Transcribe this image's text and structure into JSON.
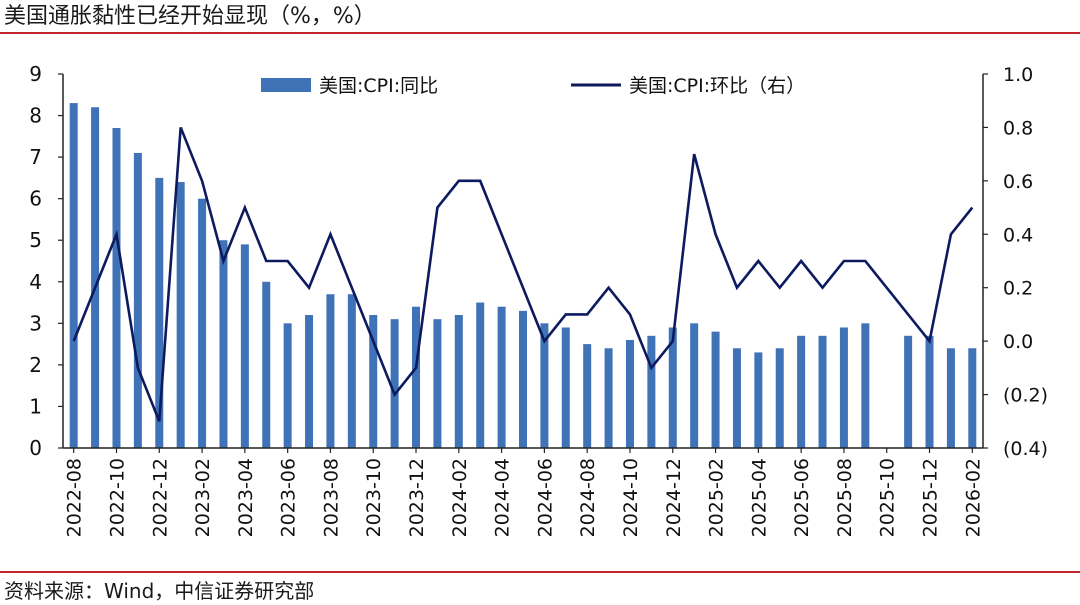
{
  "title": "美国通胀黏性已经开始显现（%，%）",
  "source": "资料来源：Wind，中信证券研究部",
  "chart_data": {
    "type": "bar+line",
    "categories": [
      "2022-08",
      "2022-09",
      "2022-10",
      "2022-11",
      "2022-12",
      "2023-01",
      "2023-02",
      "2023-03",
      "2023-04",
      "2023-05",
      "2023-06",
      "2023-07",
      "2023-08",
      "2023-09",
      "2023-10",
      "2023-11",
      "2023-12",
      "2024-01",
      "2024-02",
      "2024-03",
      "2024-04",
      "2024-05",
      "2024-06",
      "2024-07",
      "2024-08",
      "2024-09",
      "2024-10",
      "2024-11",
      "2024-12",
      "2025-01",
      "2025-02",
      "2025-03",
      "2025-04",
      "2025-05",
      "2025-06",
      "2025-07",
      "2025-08",
      "2025-09",
      "2025-10",
      "2025-11",
      "2025-12",
      "2026-01",
      "2026-02"
    ],
    "x_tick_labels": [
      "2022-08",
      "2022-10",
      "2022-12",
      "2023-02",
      "2023-04",
      "2023-06",
      "2023-08",
      "2023-10",
      "2023-12",
      "2024-02",
      "2024-04",
      "2024-06",
      "2024-08",
      "2024-10",
      "2024-12",
      "2025-02",
      "2025-04",
      "2025-06",
      "2025-08",
      "2025-10",
      "2025-12",
      "2026-02"
    ],
    "left_axis": {
      "ylim": [
        0,
        9
      ],
      "ticks": [
        "0",
        "1",
        "2",
        "3",
        "4",
        "5",
        "6",
        "7",
        "8",
        "9"
      ]
    },
    "right_axis": {
      "ylim": [
        -0.4,
        1.0
      ],
      "ticks": [
        "(0.4)",
        "(0.2)",
        "0.0",
        "0.2",
        "0.4",
        "0.6",
        "0.8",
        "1.0"
      ]
    },
    "legend_position": "top",
    "series": [
      {
        "name": "美国:CPI:同比",
        "type": "bar",
        "axis": "left",
        "color": "#3f72b6",
        "values": [
          8.3,
          8.2,
          7.7,
          7.1,
          6.5,
          6.4,
          6.0,
          5.0,
          4.9,
          4.0,
          3.0,
          3.2,
          3.7,
          3.7,
          3.2,
          3.1,
          3.4,
          3.1,
          3.2,
          3.5,
          3.4,
          3.3,
          3.0,
          2.9,
          2.5,
          2.4,
          2.6,
          2.7,
          2.9,
          3.0,
          2.8,
          2.4,
          2.3,
          2.4,
          2.7,
          2.7,
          2.9,
          3.0,
          null,
          2.7,
          2.7,
          2.4,
          2.4
        ]
      },
      {
        "name": "美国:CPI:环比（右）",
        "type": "line",
        "axis": "right",
        "color": "#0d1a5e",
        "values": [
          0.0,
          0.2,
          0.4,
          -0.1,
          -0.3,
          0.8,
          0.6,
          0.3,
          0.5,
          0.3,
          0.3,
          0.2,
          0.4,
          0.2,
          0.0,
          -0.2,
          -0.1,
          0.5,
          0.6,
          0.6,
          0.4,
          0.2,
          0.0,
          0.1,
          0.1,
          0.2,
          0.1,
          -0.1,
          0.0,
          0.7,
          0.4,
          0.2,
          0.3,
          0.2,
          0.3,
          0.2,
          0.3,
          0.3,
          null,
          null,
          0.0,
          0.4,
          0.5
        ]
      }
    ]
  }
}
